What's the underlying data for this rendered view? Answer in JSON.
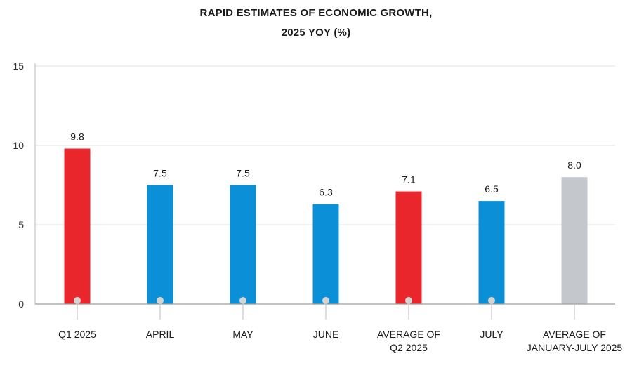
{
  "chart_data": {
    "type": "bar",
    "title_lines": [
      "RAPID ESTIMATES OF ECONOMIC GROWTH,",
      "2025 YOY (%)"
    ],
    "categories": [
      [
        "Q1 2025"
      ],
      [
        "APRIL"
      ],
      [
        "MAY"
      ],
      [
        "JUNE"
      ],
      [
        "AVERAGE OF",
        "Q2 2025"
      ],
      [
        "JULY"
      ],
      [
        "AVERAGE OF",
        "JANUARY-JULY 2025"
      ]
    ],
    "values": [
      9.8,
      7.5,
      7.5,
      6.3,
      7.1,
      6.5,
      8.0
    ],
    "value_labels": [
      "9.8",
      "7.5",
      "7.5",
      "6.3",
      "7.1",
      "6.5",
      "8.0"
    ],
    "colors": [
      "#e8262b",
      "#0b8fd6",
      "#0b8fd6",
      "#0b8fd6",
      "#e8262b",
      "#0b8fd6",
      "#c4c7cb"
    ],
    "ylim": [
      0,
      15
    ],
    "yticks": [
      0,
      5,
      10,
      15
    ],
    "ytick_labels": [
      "0",
      "5",
      "10",
      "15"
    ],
    "marker_dots": [
      true,
      true,
      true,
      true,
      true,
      true,
      false
    ],
    "grid": true,
    "xlabel": "",
    "ylabel": ""
  }
}
